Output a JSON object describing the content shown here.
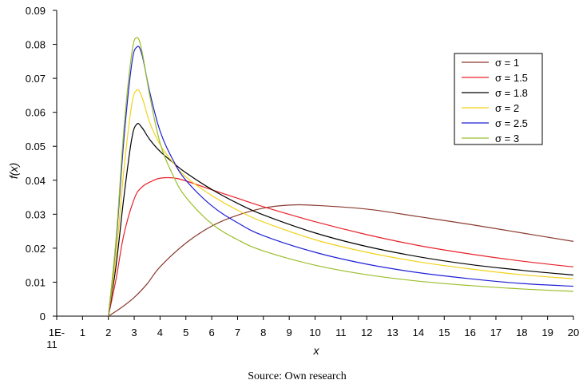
{
  "chart_data": {
    "type": "line",
    "xlabel": "x",
    "ylabel": "f(x)",
    "ylim": [
      0,
      0.09
    ],
    "yticks": [
      "0",
      "0.01",
      "0.02",
      "0.03",
      "0.04",
      "0.05",
      "0.06",
      "0.07",
      "0.08",
      "0.09"
    ],
    "xticks": [
      "1E-11",
      "1",
      "2",
      "3",
      "4",
      "5",
      "6",
      "7",
      "8",
      "9",
      "10",
      "11",
      "12",
      "13",
      "14",
      "15",
      "16",
      "17",
      "18",
      "19",
      "20"
    ],
    "grid": false,
    "legend_position": "top-right",
    "series": [
      {
        "name": "σ = 1",
        "color": "#8B3A2F",
        "x": [
          2,
          2.5,
          3,
          3.5,
          4,
          5,
          6,
          7,
          8,
          9,
          10,
          12,
          14,
          16,
          18,
          20
        ],
        "y": [
          0,
          0.0025,
          0.0055,
          0.0095,
          0.0145,
          0.0215,
          0.0265,
          0.0297,
          0.0318,
          0.0327,
          0.0326,
          0.0315,
          0.0293,
          0.027,
          0.0245,
          0.022
        ]
      },
      {
        "name": "σ = 1.5",
        "color": "#E8202A",
        "x": [
          2,
          2.3,
          2.6,
          3,
          3.3,
          3.7,
          4,
          4.5,
          5,
          6,
          7,
          8,
          10,
          12,
          14,
          16,
          18,
          20
        ],
        "y": [
          0,
          0.011,
          0.024,
          0.0345,
          0.038,
          0.0398,
          0.0406,
          0.0407,
          0.0398,
          0.0372,
          0.0347,
          0.0322,
          0.0278,
          0.024,
          0.0208,
          0.0183,
          0.0162,
          0.0145
        ]
      },
      {
        "name": "σ = 1.8",
        "color": "#000000",
        "x": [
          2,
          2.3,
          2.6,
          2.9,
          3.1,
          3.3,
          3.6,
          4,
          4.5,
          5,
          6,
          7,
          8,
          10,
          12,
          14,
          16,
          18,
          20
        ],
        "y": [
          0,
          0.015,
          0.035,
          0.052,
          0.0565,
          0.0555,
          0.052,
          0.0485,
          0.0452,
          0.0422,
          0.0373,
          0.0332,
          0.0298,
          0.0245,
          0.0205,
          0.0175,
          0.0152,
          0.0135,
          0.0121
        ]
      },
      {
        "name": "σ = 2",
        "color": "#F2D21A",
        "x": [
          2,
          2.3,
          2.6,
          2.9,
          3.1,
          3.3,
          3.6,
          4,
          4.5,
          5,
          6,
          7,
          8,
          10,
          12,
          14,
          16,
          18,
          20
        ],
        "y": [
          0,
          0.018,
          0.043,
          0.062,
          0.0665,
          0.0645,
          0.057,
          0.0505,
          0.0452,
          0.041,
          0.0355,
          0.0312,
          0.0277,
          0.0225,
          0.0188,
          0.016,
          0.0139,
          0.0122,
          0.011
        ]
      },
      {
        "name": "σ = 2.5",
        "color": "#1F1FD6",
        "x": [
          2,
          2.3,
          2.6,
          2.9,
          3.1,
          3.3,
          3.6,
          4,
          4.5,
          5,
          6,
          7,
          8,
          10,
          12,
          14,
          16,
          18,
          20
        ],
        "y": [
          0,
          0.022,
          0.052,
          0.074,
          0.0792,
          0.077,
          0.066,
          0.0545,
          0.046,
          0.04,
          0.0325,
          0.0275,
          0.0237,
          0.0188,
          0.0153,
          0.0128,
          0.011,
          0.0096,
          0.0088
        ]
      },
      {
        "name": "σ = 3",
        "color": "#9ABE2A",
        "x": [
          2,
          2.3,
          2.6,
          2.9,
          3.1,
          3.3,
          3.6,
          4,
          4.5,
          5,
          6,
          7,
          8,
          10,
          12,
          14,
          16,
          18,
          20
        ],
        "y": [
          0,
          0.023,
          0.055,
          0.077,
          0.082,
          0.078,
          0.065,
          0.051,
          0.0415,
          0.035,
          0.0272,
          0.0225,
          0.0192,
          0.015,
          0.0122,
          0.0103,
          0.009,
          0.008,
          0.0073
        ]
      }
    ]
  },
  "caption": "Source: Own research"
}
